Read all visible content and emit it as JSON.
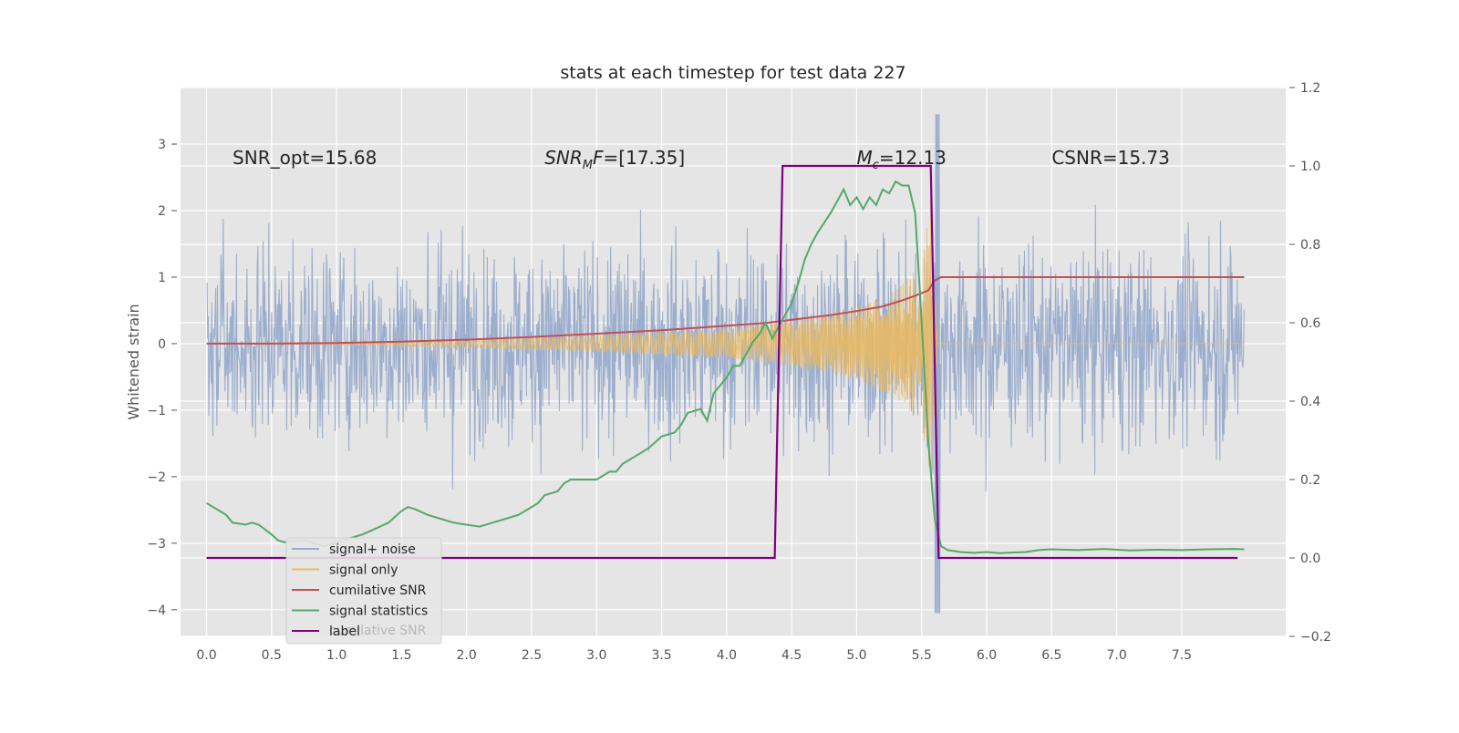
{
  "chart_data": {
    "type": "line",
    "title": "stats at each timestep for test data 227",
    "ylabel": "Whitened strain",
    "xlabel": "",
    "xlim": [
      -0.2,
      8.3
    ],
    "ylim": [
      -4.4,
      3.85
    ],
    "y2lim": [
      -0.2,
      1.2
    ],
    "grid": true,
    "legend_position": "lower-left",
    "x_ticks": [
      "0.0",
      "0.5",
      "1.0",
      "1.5",
      "2.0",
      "2.5",
      "3.0",
      "3.5",
      "4.0",
      "4.5",
      "5.0",
      "5.5",
      "6.0",
      "6.5",
      "7.0",
      "7.5"
    ],
    "x_tick_values": [
      0.0,
      0.5,
      1.0,
      1.5,
      2.0,
      2.5,
      3.0,
      3.5,
      4.0,
      4.5,
      5.0,
      5.5,
      6.0,
      6.5,
      7.0,
      7.5
    ],
    "y_ticks": [
      "3",
      "2",
      "1",
      "0",
      "−1",
      "−2",
      "−3",
      "−4"
    ],
    "y_tick_values": [
      3,
      2,
      1,
      0,
      -1,
      -2,
      -3,
      -4
    ],
    "y2_ticks": [
      "1.2",
      "1.0",
      "0.8",
      "0.6",
      "0.4",
      "0.2",
      "0.0",
      "−0.2"
    ],
    "y2_tick_values": [
      1.2,
      1.0,
      0.8,
      0.6,
      0.4,
      0.2,
      0.0,
      -0.2
    ],
    "annotations": [
      {
        "id": "snr-opt",
        "text": "SNR_opt=15.68",
        "italic": false
      },
      {
        "id": "snr-mf",
        "main": "SNR",
        "sub": "M",
        "rest": "F=[17.35]",
        "italic": true
      },
      {
        "id": "mc",
        "main": "M",
        "sub": "c",
        "rest": "=12.13",
        "italic": true
      },
      {
        "id": "csnr",
        "text": "CSNR=15.73",
        "italic": false
      }
    ],
    "series": [
      {
        "name": "signal+ noise",
        "color": "#98abcc",
        "axis": "left",
        "description": "whitened strain noise, approx. sigma 1, spanning x 0.0 to 7.98",
        "x_range": [
          0.0,
          7.98
        ],
        "amplitude": 1.0
      },
      {
        "name": "signal only",
        "color": "#e8b964",
        "axis": "left",
        "description": "chirp growing until merger at ~5.6 s, then flat at 0",
        "merger_x": 5.6,
        "envelope": [
          [
            1.0,
            0.02
          ],
          [
            2.0,
            0.06
          ],
          [
            3.0,
            0.12
          ],
          [
            4.0,
            0.22
          ],
          [
            4.5,
            0.35
          ],
          [
            5.0,
            0.55
          ],
          [
            5.3,
            0.8
          ],
          [
            5.5,
            1.2
          ],
          [
            5.58,
            2.3
          ],
          [
            5.62,
            0
          ]
        ]
      },
      {
        "name": "cumilative SNR",
        "color": "#c44e52",
        "axis": "left",
        "x": [
          0.0,
          0.5,
          1.0,
          1.5,
          2.0,
          2.5,
          3.0,
          3.5,
          4.0,
          4.3,
          4.5,
          4.8,
          5.0,
          5.2,
          5.35,
          5.45,
          5.55,
          5.6,
          5.65,
          7.98
        ],
        "y": [
          0.0,
          0.0,
          0.01,
          0.03,
          0.06,
          0.1,
          0.15,
          0.2,
          0.27,
          0.31,
          0.36,
          0.43,
          0.49,
          0.56,
          0.65,
          0.72,
          0.8,
          0.95,
          1.0,
          1.0
        ]
      },
      {
        "name": "signal statistics",
        "color": "#55a868",
        "axis": "right",
        "x": [
          0.0,
          0.1,
          0.15,
          0.2,
          0.3,
          0.35,
          0.4,
          0.5,
          0.55,
          0.6,
          0.75,
          0.9,
          1.0,
          1.1,
          1.2,
          1.3,
          1.4,
          1.5,
          1.55,
          1.6,
          1.7,
          1.8,
          1.9,
          2.0,
          2.1,
          2.2,
          2.3,
          2.4,
          2.5,
          2.55,
          2.6,
          2.7,
          2.75,
          2.8,
          2.9,
          3.0,
          3.1,
          3.15,
          3.2,
          3.3,
          3.4,
          3.5,
          3.6,
          3.65,
          3.7,
          3.8,
          3.85,
          3.9,
          4.0,
          4.05,
          4.1,
          4.2,
          4.25,
          4.3,
          4.35,
          4.4,
          4.5,
          4.55,
          4.6,
          4.65,
          4.7,
          4.8,
          4.85,
          4.9,
          4.95,
          5.0,
          5.05,
          5.1,
          5.15,
          5.2,
          5.25,
          5.3,
          5.35,
          5.4,
          5.45,
          5.5,
          5.55,
          5.6,
          5.65,
          5.7,
          5.8,
          5.9,
          6.0,
          6.1,
          6.2,
          6.3,
          6.4,
          6.5,
          6.7,
          6.9,
          7.1,
          7.3,
          7.5,
          7.7,
          7.9,
          7.98
        ],
        "y": [
          0.14,
          0.12,
          0.11,
          0.09,
          0.085,
          0.09,
          0.085,
          0.06,
          0.045,
          0.04,
          0.045,
          0.03,
          0.04,
          0.05,
          0.06,
          0.075,
          0.09,
          0.12,
          0.13,
          0.125,
          0.11,
          0.1,
          0.09,
          0.085,
          0.08,
          0.09,
          0.1,
          0.11,
          0.13,
          0.14,
          0.16,
          0.17,
          0.19,
          0.2,
          0.2,
          0.2,
          0.22,
          0.22,
          0.24,
          0.26,
          0.28,
          0.31,
          0.32,
          0.34,
          0.37,
          0.38,
          0.35,
          0.42,
          0.46,
          0.49,
          0.49,
          0.55,
          0.57,
          0.6,
          0.56,
          0.59,
          0.65,
          0.7,
          0.76,
          0.8,
          0.83,
          0.88,
          0.91,
          0.94,
          0.9,
          0.92,
          0.89,
          0.92,
          0.9,
          0.94,
          0.93,
          0.96,
          0.95,
          0.95,
          0.88,
          0.6,
          0.3,
          0.1,
          0.03,
          0.02,
          0.015,
          0.013,
          0.015,
          0.012,
          0.014,
          0.015,
          0.02,
          0.022,
          0.02,
          0.023,
          0.019,
          0.021,
          0.02,
          0.022,
          0.023,
          0.022
        ]
      },
      {
        "name": "label",
        "color": "#800080",
        "axis": "right",
        "x": [
          0.0,
          4.37,
          4.43,
          5.57,
          5.63,
          7.93
        ],
        "y": [
          0.0,
          0.0,
          1.0,
          1.0,
          0.0,
          0.0
        ]
      }
    ],
    "legend_entries": [
      "signal+ noise",
      "signal only",
      "cumilative SNR",
      "signal statistics",
      "label"
    ],
    "legend_ghost_text": "cumilative SNR"
  }
}
